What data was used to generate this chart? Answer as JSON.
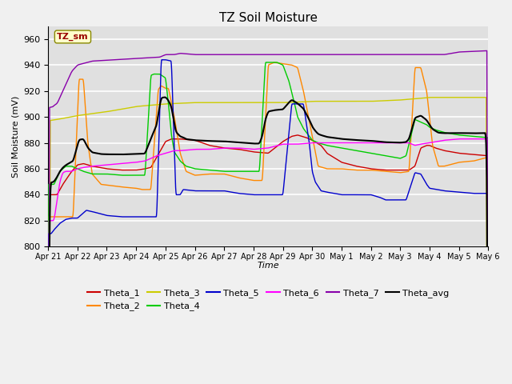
{
  "title": "TZ Soil Moisture",
  "xlabel": "Time",
  "ylabel": "Soil Moisture (mV)",
  "ylim": [
    800,
    970
  ],
  "yticks": [
    800,
    820,
    840,
    860,
    880,
    900,
    920,
    940,
    960
  ],
  "x_labels": [
    "Apr 21",
    "Apr 22",
    "Apr 23",
    "Apr 24",
    "Apr 25",
    "Apr 26",
    "Apr 27",
    "Apr 28",
    "Apr 29",
    "Apr 30",
    "May 1",
    "May 2",
    "May 3",
    "May 4",
    "May 5",
    "May 6"
  ],
  "series_colors": {
    "Theta_1": "#cc0000",
    "Theta_2": "#ff8800",
    "Theta_3": "#cccc00",
    "Theta_4": "#00cc00",
    "Theta_5": "#0000cc",
    "Theta_6": "#ff00ff",
    "Theta_7": "#8800aa",
    "Theta_avg": "#000000"
  },
  "legend_label": "TZ_sm",
  "fig_bg": "#f0f0f0",
  "plot_bg": "#e0e0e0",
  "grid_color": "#ffffff"
}
